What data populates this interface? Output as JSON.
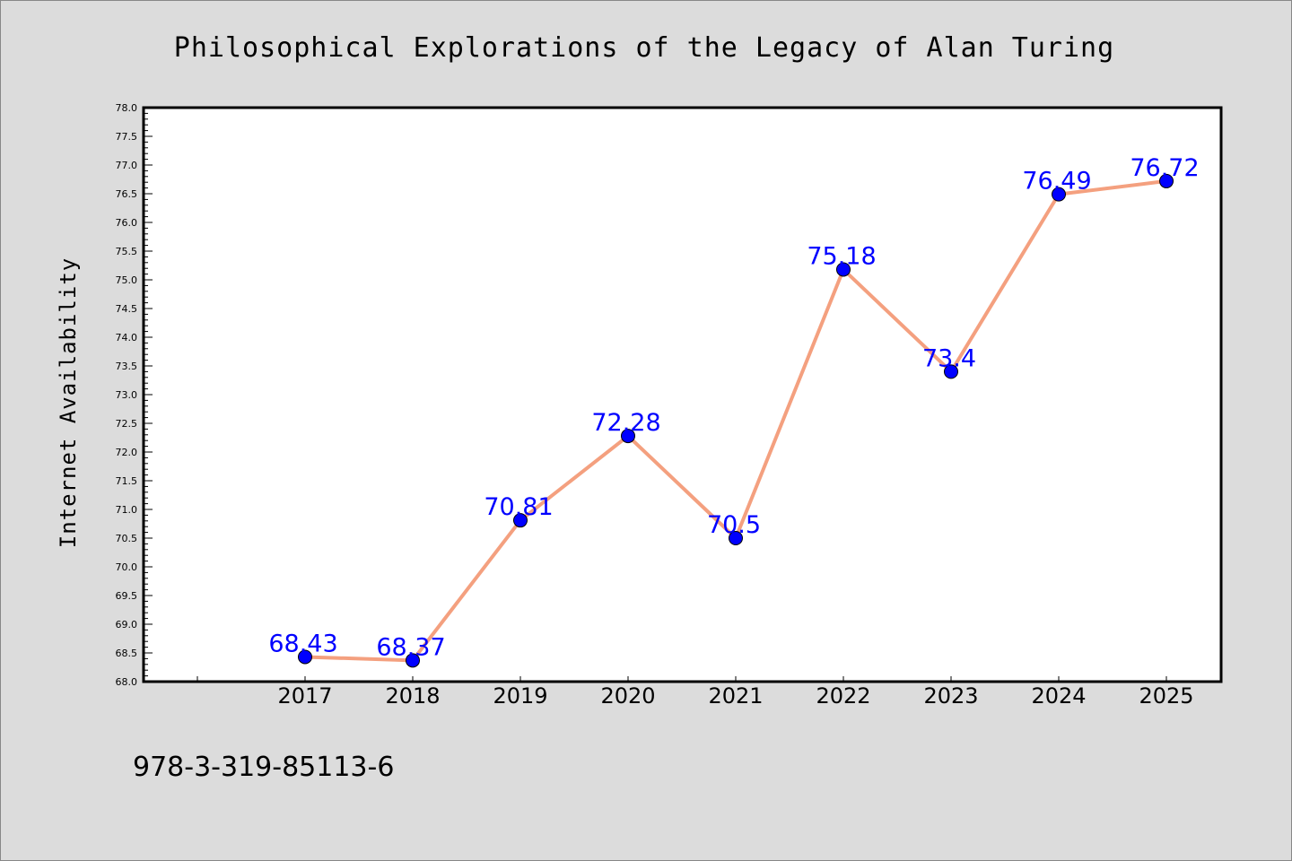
{
  "chart_data": {
    "type": "line",
    "title": "Philosophical Explorations of the Legacy of Alan Turing",
    "xlabel": "",
    "ylabel": "Internet Availability",
    "categories": [
      "2017",
      "2018",
      "2019",
      "2020",
      "2021",
      "2022",
      "2023",
      "2024",
      "2025"
    ],
    "values": [
      68.43,
      68.37,
      70.81,
      72.28,
      70.5,
      75.18,
      73.4,
      76.49,
      76.72
    ],
    "data_labels": [
      "68.43",
      "68.37",
      "70.81",
      "72.28",
      "70.5",
      "75.18",
      "73.4",
      "76.49",
      "76.72"
    ],
    "ylim": [
      68.0,
      78.0
    ],
    "yticks": [
      68.0,
      68.5,
      69.0,
      69.5,
      70.0,
      70.5,
      71.0,
      71.5,
      72.0,
      72.5,
      73.0,
      73.5,
      74.0,
      74.5,
      75.0,
      75.5,
      76.0,
      76.5,
      77.0,
      77.5,
      78.0
    ],
    "grid": false,
    "legend": "none",
    "line_color": "#f4a07f",
    "marker_color": "#0000ff",
    "label_color": "#0000ff",
    "plot_background": "#ffffff",
    "page_background": "#dcdcdc"
  },
  "footer": {
    "isbn": "978-3-319-85113-6"
  }
}
